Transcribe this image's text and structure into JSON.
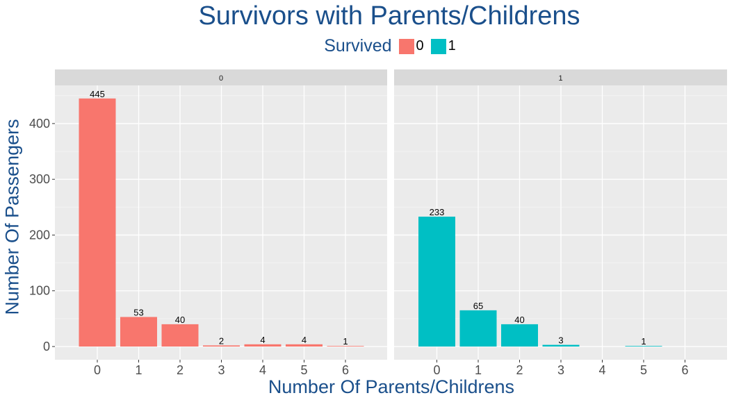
{
  "title": "Survivors with Parents/Childrens",
  "legend": {
    "title": "Survived",
    "items": [
      {
        "label": "0",
        "color": "#F8766D"
      },
      {
        "label": "1",
        "color": "#00BFC4"
      }
    ]
  },
  "chart_data": {
    "type": "bar",
    "title": "Survivors with Parents/Childrens",
    "xlabel": "Number Of Parents/Childrens",
    "ylabel": "Number Of Passengers",
    "categories": [
      "0",
      "1",
      "2",
      "3",
      "4",
      "5",
      "6"
    ],
    "ylim": [
      0,
      470
    ],
    "yticks": [
      0,
      100,
      200,
      300,
      400
    ],
    "grid": true,
    "legend_position": "top",
    "facets": [
      {
        "strip": "0",
        "color": "#F8766D",
        "bars": [
          {
            "x": "0",
            "value": 445
          },
          {
            "x": "1",
            "value": 53
          },
          {
            "x": "2",
            "value": 40
          },
          {
            "x": "3",
            "value": 2
          },
          {
            "x": "4",
            "value": 4
          },
          {
            "x": "5",
            "value": 4
          },
          {
            "x": "6",
            "value": 1
          }
        ]
      },
      {
        "strip": "1",
        "color": "#00BFC4",
        "bars": [
          {
            "x": "0",
            "value": 233
          },
          {
            "x": "1",
            "value": 65
          },
          {
            "x": "2",
            "value": 40
          },
          {
            "x": "3",
            "value": 3
          },
          {
            "x": "5",
            "value": 1
          }
        ]
      }
    ]
  }
}
